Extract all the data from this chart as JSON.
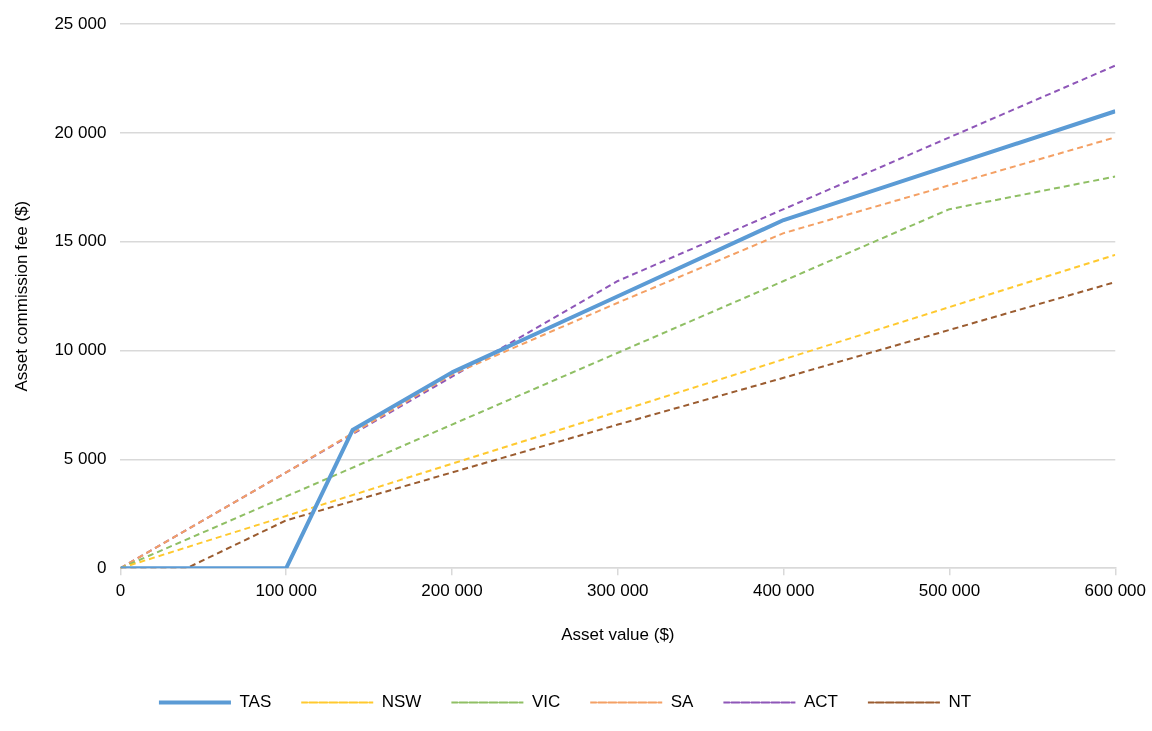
{
  "chart_data": {
    "type": "line",
    "xlabel": "Asset value ($)",
    "ylabel": "Asset commission fee ($)",
    "x": [
      0,
      100000,
      200000,
      300000,
      400000,
      500000,
      600000
    ],
    "xlim": [
      0,
      600000
    ],
    "xticks": [
      0,
      {
        "value": 100000,
        "label": "100 000"
      },
      {
        "value": 200000,
        "label": "200 000"
      },
      {
        "value": 300000,
        "label": "300 000"
      },
      {
        "value": 400000,
        "label": "400 000"
      },
      {
        "value": 500000,
        "label": "500 000"
      },
      {
        "value": 600000,
        "label": "600 000"
      }
    ],
    "ylim": [
      0,
      25000
    ],
    "yticks": [
      0,
      {
        "value": 5000,
        "label": "5 000"
      },
      {
        "value": 10000,
        "label": "10 000"
      },
      {
        "value": 15000,
        "label": "15 000"
      },
      {
        "value": 20000,
        "label": "20 000"
      },
      {
        "value": 25000,
        "label": "25 000"
      }
    ],
    "grid": "y",
    "legend": "bottom",
    "marker": "none",
    "series": [
      {
        "name": "TAS",
        "color": "#5b9bd5",
        "line_style": "solid",
        "x": [
          0,
          100000,
          140000,
          200000,
          300000,
          400000,
          500000,
          600000
        ],
        "values": [
          0,
          0,
          6350,
          9000,
          12500,
          16000,
          18500,
          21000
        ]
      },
      {
        "name": "NSW",
        "color": "#ffc92e",
        "line_style": "dashed",
        "values": [
          0,
          2400,
          4800,
          7200,
          9600,
          12000,
          14400
        ]
      },
      {
        "name": "VIC",
        "color": "#8fbf64",
        "line_style": "dashed",
        "values": [
          0,
          3300,
          6600,
          9900,
          13200,
          16500,
          18000
        ]
      },
      {
        "name": "SA",
        "color": "#f4a064",
        "line_style": "dashed",
        "values": [
          0,
          4400,
          8900,
          12200,
          15400,
          17600,
          19800
        ]
      },
      {
        "name": "ACT",
        "color": "#8e56b8",
        "line_style": "dashed",
        "values": [
          0,
          4400,
          8800,
          13200,
          16500,
          19800,
          23100
        ]
      },
      {
        "name": "NT",
        "color": "#9b5c30",
        "line_style": "dashed",
        "x": [
          0,
          40000,
          100000,
          200000,
          300000,
          400000,
          500000,
          600000
        ],
        "values": [
          0,
          0,
          2200,
          4400,
          6600,
          8750,
          10950,
          13150
        ]
      }
    ]
  }
}
